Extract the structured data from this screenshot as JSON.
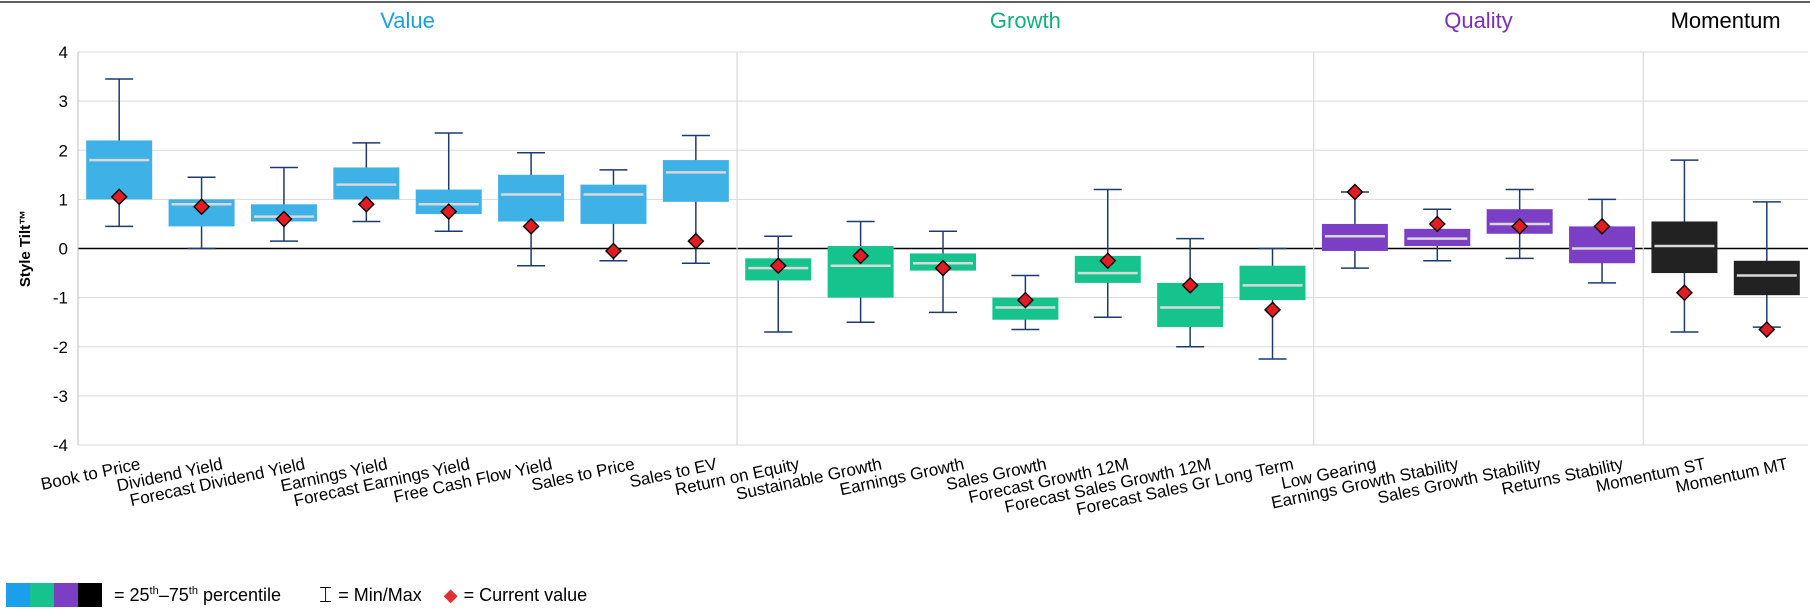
{
  "chart_data": {
    "type": "box",
    "ylabel": "Style Tilt™",
    "ylim": [
      -4,
      4
    ],
    "yticks": [
      -4,
      -3,
      -2,
      -1,
      0,
      1,
      2,
      3,
      4
    ],
    "grid": true,
    "groups": [
      {
        "name": "Value",
        "color": "#3eb1e6",
        "title_color": "#1aa0e0",
        "count": 8
      },
      {
        "name": "Growth",
        "color": "#17c38c",
        "title_color": "#12b07a",
        "count": 7
      },
      {
        "name": "Quality",
        "color": "#7b3fc6",
        "title_color": "#7b2fb8",
        "count": 4
      },
      {
        "name": "Momentum",
        "color": "#222222",
        "title_color": "#000000",
        "count": 2
      }
    ],
    "categories": [
      "Book to Price",
      "Dividend Yield",
      "Forecast Dividend Yield",
      "Earnings Yield",
      "Forecast Earnings Yield",
      "Free Cash Flow Yield",
      "Sales to Price",
      "Sales to EV",
      "Return on Equity",
      "Sustainable Growth",
      "Earnings Growth",
      "Sales Growth",
      "Forecast Growth 12M",
      "Forecast Sales Growth 12M",
      "Forecast Sales Gr Long Term",
      "Low Gearing",
      "Earnings Growth Stability",
      "Sales Growth Stability",
      "Returns Stability",
      "Momentum ST",
      "Momentum MT"
    ],
    "series": [
      {
        "name": "Min",
        "values": [
          0.45,
          0.0,
          0.15,
          0.55,
          0.35,
          -0.35,
          -0.25,
          -0.3,
          -1.7,
          -1.5,
          -1.3,
          -1.65,
          -1.4,
          -2.0,
          -2.25,
          -0.4,
          -0.25,
          -0.2,
          -0.7,
          -1.7,
          -1.6
        ]
      },
      {
        "name": "25th percentile",
        "values": [
          1.0,
          0.45,
          0.55,
          1.0,
          0.7,
          0.55,
          0.5,
          0.95,
          -0.65,
          -1.0,
          -0.45,
          -1.45,
          -0.7,
          -1.6,
          -1.05,
          -0.05,
          0.05,
          0.3,
          -0.3,
          -0.5,
          -0.95
        ]
      },
      {
        "name": "Median",
        "values": [
          1.8,
          0.9,
          0.65,
          1.3,
          0.9,
          1.1,
          1.1,
          1.55,
          -0.4,
          -0.35,
          -0.3,
          -1.2,
          -0.5,
          -1.2,
          -0.75,
          0.25,
          0.2,
          0.5,
          0.0,
          0.05,
          -0.55
        ]
      },
      {
        "name": "75th percentile",
        "values": [
          2.2,
          1.0,
          0.9,
          1.65,
          1.2,
          1.5,
          1.3,
          1.8,
          -0.2,
          0.05,
          -0.1,
          -1.0,
          -0.15,
          -0.7,
          -0.35,
          0.5,
          0.4,
          0.8,
          0.45,
          0.55,
          -0.25
        ]
      },
      {
        "name": "Max",
        "values": [
          3.45,
          1.45,
          1.65,
          2.15,
          2.35,
          1.95,
          1.6,
          2.3,
          0.25,
          0.55,
          0.35,
          -0.55,
          1.2,
          0.2,
          0.0,
          1.15,
          0.8,
          1.2,
          1.0,
          1.8,
          0.95
        ]
      },
      {
        "name": "Current value",
        "values": [
          1.05,
          0.85,
          0.6,
          0.9,
          0.75,
          0.45,
          -0.05,
          0.15,
          -0.35,
          -0.15,
          -0.4,
          -1.05,
          -0.25,
          -0.75,
          -1.25,
          1.15,
          0.5,
          0.45,
          0.45,
          -0.9,
          -1.65
        ]
      }
    ]
  },
  "legend": {
    "swatch_colors": [
      "#1aa0ea",
      "#17c38c",
      "#7b3fc6",
      "#000000"
    ],
    "percentile_prefix": "= 25",
    "percentile_sup1": "th",
    "percentile_dash": "–75",
    "percentile_sup2": "th",
    "percentile_suffix": " percentile",
    "minmax_icon": "whisker-icon",
    "minmax_symbol": "⌶",
    "minmax_label": "= Min/Max",
    "current_icon": "diamond-icon",
    "current_symbol": "◆",
    "current_label": "= Current value"
  }
}
